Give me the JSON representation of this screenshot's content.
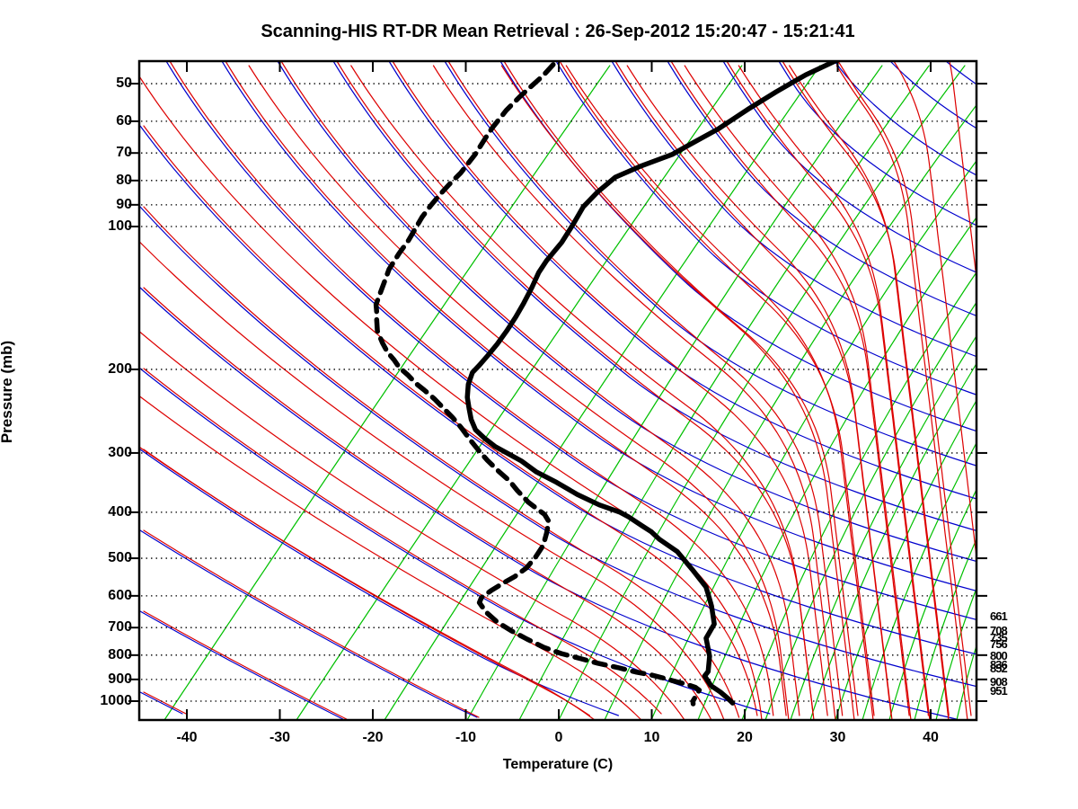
{
  "title": "Scanning-HIS RT-DR Mean Retrieval : 26-Sep-2012 15:20:47 - 15:21:41",
  "axes": {
    "x": {
      "label": "Temperature (C)",
      "ticks": [
        -40,
        -30,
        -20,
        -10,
        0,
        10,
        20,
        30,
        40
      ],
      "min_c": -45,
      "max_c": 45
    },
    "y": {
      "label": "Pressure (mb)",
      "ticks": [
        50,
        60,
        70,
        80,
        90,
        100,
        200,
        300,
        400,
        500,
        600,
        700,
        800,
        900,
        1000
      ],
      "top_mb": 44.6,
      "bottom_mb": 1095
    }
  },
  "right_pressure_labels": [
    661,
    708,
    735,
    756,
    800,
    836,
    852,
    908,
    951
  ],
  "colors": {
    "isotherm_green": "#00c000",
    "dry_adiabat_blue": "#0000cd",
    "moist_adiabat_red": "#dd0000",
    "profile_black": "#000000",
    "grid_black": "#000000",
    "background": "#ffffff"
  },
  "chart_data": {
    "type": "line",
    "subtype": "skew-T log-P sounding",
    "title": "Scanning-HIS RT-DR Mean Retrieval : 26-Sep-2012 15:20:47 - 15:21:41",
    "xlabel": "Temperature (C)",
    "ylabel": "Pressure (mb)",
    "x_range_c": [
      -45,
      45
    ],
    "pressure_range_mb": [
      44.6,
      1095
    ],
    "grid": "dotted horizontal isobars at labeled pressures; skewed 5C isotherms (green), dry adiabats (blue), moist adiabats (red)",
    "legend_position": "none",
    "isotherm_spacing_c": 5,
    "series": [
      {
        "name": "temperature",
        "style": "solid",
        "color": "#000000",
        "points_p_T": [
          [
            44.8,
            -11.3
          ],
          [
            47.9,
            -13.6
          ],
          [
            52,
            -15.7
          ],
          [
            56.7,
            -17.7
          ],
          [
            62.2,
            -19.6
          ],
          [
            66.9,
            -21.6
          ],
          [
            70.5,
            -23.0
          ],
          [
            74.7,
            -25.7
          ],
          [
            78.7,
            -27.7
          ],
          [
            84.7,
            -28.7
          ],
          [
            90.8,
            -29.3
          ],
          [
            99.1,
            -29.3
          ],
          [
            108,
            -29.4
          ],
          [
            118,
            -29.9
          ],
          [
            125,
            -30.0
          ],
          [
            134.5,
            -29.8
          ],
          [
            145,
            -29.7
          ],
          [
            155,
            -29.7
          ],
          [
            166,
            -29.8
          ],
          [
            177,
            -30.0
          ],
          [
            187,
            -30.3
          ],
          [
            196,
            -30.6
          ],
          [
            203,
            -30.9
          ],
          [
            215,
            -30.6
          ],
          [
            229,
            -29.9
          ],
          [
            242,
            -29.0
          ],
          [
            255,
            -28.1
          ],
          [
            268,
            -27.0
          ],
          [
            280,
            -25.4
          ],
          [
            291,
            -23.8
          ],
          [
            301,
            -22.0
          ],
          [
            312,
            -20.1
          ],
          [
            329,
            -17.8
          ],
          [
            346,
            -15.0
          ],
          [
            367,
            -12.0
          ],
          [
            386,
            -9.0
          ],
          [
            400,
            -6.3
          ],
          [
            409,
            -5.1
          ],
          [
            427,
            -3.1
          ],
          [
            440,
            -1.7
          ],
          [
            456,
            -0.4
          ],
          [
            484,
            2.3
          ],
          [
            531,
            5.2
          ],
          [
            575,
            7.6
          ],
          [
            602,
            8.5
          ],
          [
            631,
            9.4
          ],
          [
            688,
            10.8
          ],
          [
            737,
            10.8
          ],
          [
            804,
            12.3
          ],
          [
            866,
            13.1
          ],
          [
            885,
            13.0
          ],
          [
            928,
            14.3
          ],
          [
            957,
            15.7
          ],
          [
            987,
            16.9
          ],
          [
            1009,
            17.7
          ]
        ]
      },
      {
        "name": "dewpoint",
        "style": "dashed",
        "color": "#000000",
        "points_p_T": [
          [
            45.6,
            -41.4
          ],
          [
            48.1,
            -41.8
          ],
          [
            50.6,
            -42.4
          ],
          [
            53.3,
            -43.0
          ],
          [
            56.9,
            -43.6
          ],
          [
            61.9,
            -44.0
          ],
          [
            64.7,
            -44.1
          ],
          [
            70.5,
            -44.2
          ],
          [
            73.7,
            -44.4
          ],
          [
            77.1,
            -44.6
          ],
          [
            81.4,
            -45.1
          ],
          [
            85.8,
            -45.5
          ],
          [
            90.5,
            -45.8
          ],
          [
            95.6,
            -46.0
          ],
          [
            101,
            -46.0
          ],
          [
            107,
            -46.0
          ],
          [
            114,
            -46.2
          ],
          [
            123,
            -46.3
          ],
          [
            131,
            -46.0
          ],
          [
            140,
            -45.7
          ],
          [
            146,
            -45.5
          ],
          [
            152,
            -44.9
          ],
          [
            157,
            -44.5
          ],
          [
            166,
            -43.7
          ],
          [
            176,
            -42.4
          ],
          [
            184,
            -41.3
          ],
          [
            191,
            -40.1
          ],
          [
            198,
            -39.1
          ],
          [
            206,
            -37.6
          ],
          [
            214,
            -36.3
          ],
          [
            221,
            -35.0
          ],
          [
            231,
            -33.3
          ],
          [
            242,
            -31.7
          ],
          [
            252,
            -30.3
          ],
          [
            265,
            -28.7
          ],
          [
            281,
            -27.0
          ],
          [
            296,
            -25.4
          ],
          [
            311,
            -23.8
          ],
          [
            328,
            -21.9
          ],
          [
            343,
            -20.2
          ],
          [
            360,
            -18.7
          ],
          [
            381,
            -16.8
          ],
          [
            393,
            -15.5
          ],
          [
            404,
            -14.3
          ],
          [
            418,
            -13.4
          ],
          [
            443,
            -12.9
          ],
          [
            470,
            -12.5
          ],
          [
            498,
            -12.6
          ],
          [
            524,
            -12.9
          ],
          [
            546,
            -13.6
          ],
          [
            565,
            -14.5
          ],
          [
            585,
            -15.3
          ],
          [
            605,
            -15.9
          ],
          [
            620,
            -15.8
          ],
          [
            649,
            -14.5
          ],
          [
            681,
            -12.7
          ],
          [
            711,
            -10.6
          ],
          [
            740,
            -8.4
          ],
          [
            770,
            -6.1
          ],
          [
            794,
            -3.8
          ],
          [
            813,
            -1.5
          ],
          [
            832,
            0.7
          ],
          [
            851,
            3.3
          ],
          [
            868,
            5.3
          ],
          [
            881,
            7.2
          ],
          [
            894,
            8.7
          ],
          [
            908,
            10.1
          ],
          [
            921,
            11.5
          ],
          [
            935,
            12.7
          ],
          [
            948,
            13.3
          ],
          [
            1000,
            13.3
          ],
          [
            1013,
            13.5
          ]
        ]
      }
    ]
  }
}
